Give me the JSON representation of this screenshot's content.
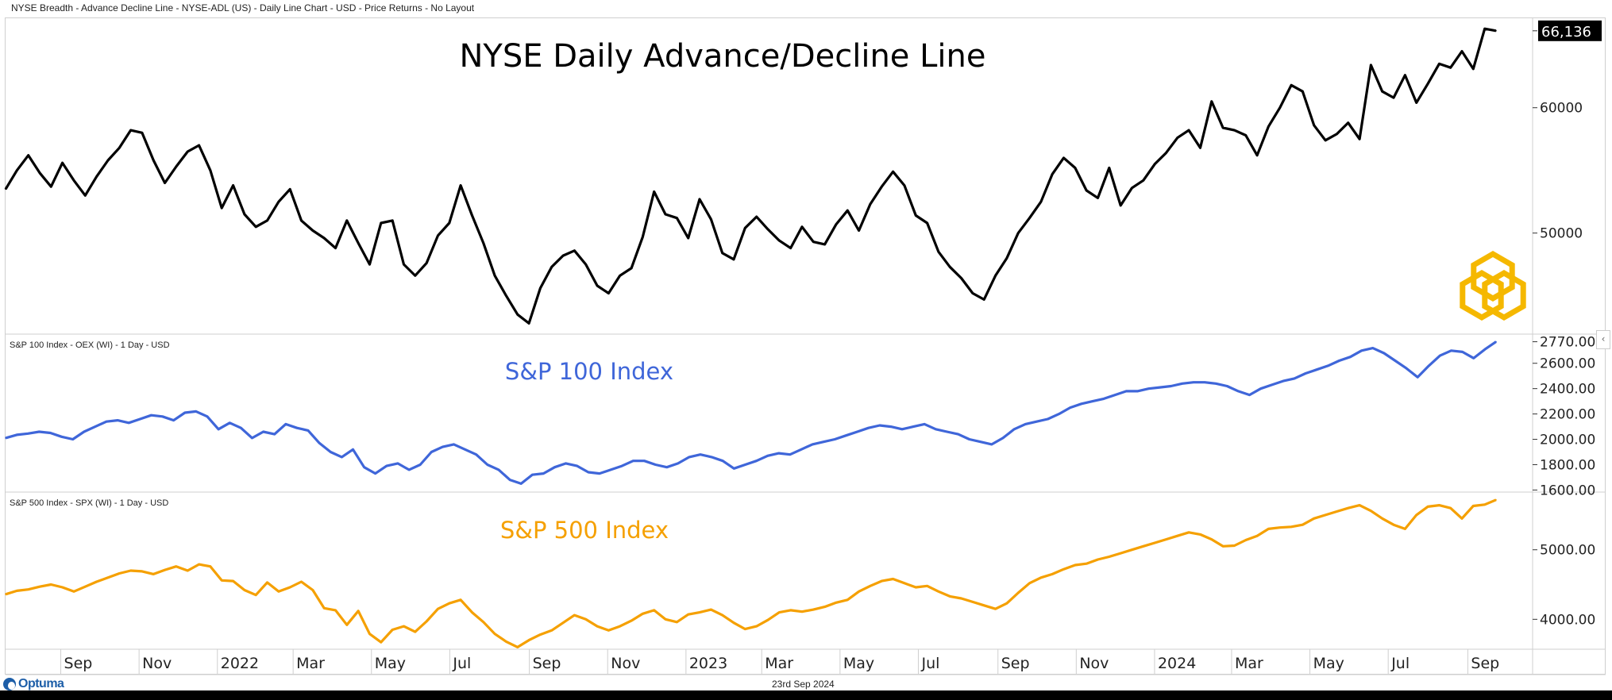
{
  "header": {
    "title": "NYSE Breadth - Advance Decline Line - NYSE-ADL (US) - Daily Line Chart - USD - Price Returns - No Layout"
  },
  "footer": {
    "date": "23rd Sep 2024",
    "brand": "Optuma"
  },
  "colors": {
    "adl": "#000000",
    "oex": "#3f66d9",
    "spx": "#f5a000",
    "watermark": "#f5b800",
    "last_value_bg": "#000000"
  },
  "chart_data": [
    {
      "type": "line",
      "panel": "top",
      "title": "NYSE Daily Advance/Decline Line",
      "series_label": "NYSE Breadth - Advance Decline Line - NYSE-ADL (US) - Daily Line Chart - USD - Price Returns - No Layout",
      "ylabel": "",
      "yticks": [
        50000,
        60000
      ],
      "ytick_labels": [
        "50000",
        "60000"
      ],
      "ylim": [
        42000,
        67200
      ],
      "last_value_label": "66,136",
      "last_value": 66136,
      "x_months": [
        "2021-07",
        "2024-09"
      ],
      "series": [
        {
          "name": "NYSE-ADL",
          "values": [
            53500,
            55000,
            56200,
            54800,
            53700,
            55600,
            54200,
            53000,
            54500,
            55800,
            56800,
            58200,
            58000,
            55800,
            54000,
            55300,
            56500,
            57000,
            55000,
            52000,
            53800,
            51500,
            50500,
            51000,
            52500,
            53500,
            51000,
            50200,
            49600,
            48800,
            51000,
            49200,
            47500,
            50800,
            51000,
            47500,
            46600,
            47600,
            49800,
            50800,
            53800,
            51400,
            49200,
            46600,
            45000,
            43500,
            42800,
            45600,
            47300,
            48200,
            48600,
            47500,
            45800,
            45200,
            46600,
            47200,
            49700,
            53300,
            51500,
            51200,
            49600,
            52700,
            51100,
            48400,
            47900,
            50400,
            51300,
            50300,
            49400,
            48800,
            50500,
            49300,
            49100,
            50700,
            51800,
            50200,
            52300,
            53700,
            54900,
            53800,
            51400,
            50800,
            48500,
            47300,
            46400,
            45200,
            44700,
            46600,
            48000,
            50000,
            51200,
            52500,
            54700,
            56000,
            55200,
            53400,
            52800,
            55200,
            52200,
            53600,
            54200,
            55500,
            56400,
            57600,
            58200,
            56800,
            60500,
            58400,
            58200,
            57800,
            56200,
            58500,
            60000,
            61800,
            61300,
            58600,
            57400,
            57900,
            58800,
            57500,
            63400,
            61300,
            60800,
            62600,
            60400,
            61900,
            63500,
            63200,
            64500,
            63100,
            66300,
            66136
          ]
        }
      ],
      "grid": false
    },
    {
      "type": "line",
      "panel": "middle",
      "title": "S&P 100 Index",
      "series_label": "S&P 100 Index - OEX (WI) - 1 Day - USD",
      "yticks": [
        1600,
        1800,
        2000,
        2200,
        2400,
        2600,
        2770
      ],
      "ytick_labels": [
        "1600.00",
        "1800.00",
        "2000.00",
        "2200.00",
        "2400.00",
        "2600.00",
        "2770.00"
      ],
      "ylim": [
        1590,
        2830
      ],
      "last_value": 2770,
      "series": [
        {
          "name": "OEX",
          "values": [
            2010,
            2035,
            2045,
            2060,
            2050,
            2020,
            2000,
            2060,
            2100,
            2140,
            2150,
            2130,
            2160,
            2190,
            2180,
            2150,
            2210,
            2220,
            2180,
            2080,
            2130,
            2090,
            2010,
            2060,
            2040,
            2120,
            2090,
            2070,
            1970,
            1900,
            1860,
            1920,
            1780,
            1730,
            1790,
            1810,
            1760,
            1800,
            1900,
            1940,
            1960,
            1920,
            1880,
            1800,
            1760,
            1680,
            1650,
            1720,
            1730,
            1780,
            1810,
            1790,
            1740,
            1730,
            1760,
            1790,
            1830,
            1830,
            1800,
            1780,
            1810,
            1860,
            1880,
            1860,
            1830,
            1770,
            1800,
            1830,
            1870,
            1890,
            1880,
            1920,
            1960,
            1980,
            2000,
            2030,
            2060,
            2090,
            2110,
            2100,
            2080,
            2100,
            2120,
            2080,
            2060,
            2040,
            2000,
            1980,
            1960,
            2010,
            2080,
            2120,
            2140,
            2160,
            2200,
            2250,
            2280,
            2300,
            2320,
            2350,
            2380,
            2380,
            2400,
            2410,
            2420,
            2440,
            2450,
            2450,
            2440,
            2420,
            2380,
            2350,
            2400,
            2430,
            2460,
            2480,
            2520,
            2550,
            2580,
            2620,
            2650,
            2700,
            2720,
            2680,
            2620,
            2560,
            2490,
            2580,
            2660,
            2700,
            2690,
            2640,
            2710,
            2770
          ]
        }
      ],
      "grid": false
    },
    {
      "type": "line",
      "panel": "bottom",
      "title": "S&P 500 Index",
      "series_label": "S&P 500 Index - SPX (WI) - 1 Day - USD",
      "yticks": [
        4000,
        5000
      ],
      "ytick_labels": [
        "4000.00",
        "5000.00"
      ],
      "ylim": [
        3570,
        5830
      ],
      "last_value": 5718,
      "series": [
        {
          "name": "SPX",
          "values": [
            4360,
            4410,
            4430,
            4470,
            4500,
            4460,
            4400,
            4470,
            4540,
            4600,
            4660,
            4700,
            4690,
            4650,
            4710,
            4760,
            4700,
            4790,
            4760,
            4560,
            4550,
            4420,
            4350,
            4530,
            4400,
            4460,
            4540,
            4420,
            4160,
            4130,
            3920,
            4120,
            3790,
            3670,
            3850,
            3900,
            3820,
            3970,
            4150,
            4230,
            4280,
            4100,
            3960,
            3790,
            3680,
            3600,
            3700,
            3780,
            3840,
            3950,
            4060,
            4000,
            3900,
            3840,
            3900,
            3980,
            4080,
            4130,
            4000,
            3960,
            4070,
            4100,
            4140,
            4060,
            3950,
            3860,
            3900,
            3990,
            4100,
            4130,
            4110,
            4140,
            4180,
            4240,
            4280,
            4400,
            4480,
            4550,
            4580,
            4520,
            4460,
            4480,
            4400,
            4330,
            4300,
            4250,
            4200,
            4150,
            4230,
            4380,
            4520,
            4600,
            4650,
            4720,
            4780,
            4800,
            4860,
            4900,
            4950,
            5000,
            5050,
            5100,
            5150,
            5200,
            5250,
            5220,
            5150,
            5050,
            5060,
            5140,
            5200,
            5300,
            5320,
            5330,
            5360,
            5450,
            5500,
            5550,
            5600,
            5640,
            5560,
            5450,
            5360,
            5300,
            5500,
            5620,
            5640,
            5600,
            5450,
            5630,
            5650,
            5718
          ]
        }
      ],
      "grid": false
    }
  ],
  "x_axis": {
    "labels": [
      "Sep",
      "Nov",
      "2022",
      "Mar",
      "May",
      "Jul",
      "Sep",
      "Nov",
      "2023",
      "Mar",
      "May",
      "Jul",
      "Sep",
      "Nov",
      "2024",
      "Mar",
      "May",
      "Jul",
      "Sep"
    ],
    "label_dates": [
      "2021-09",
      "2021-11",
      "2022-01",
      "2022-03",
      "2022-05",
      "2022-07",
      "2022-09",
      "2022-11",
      "2023-01",
      "2023-03",
      "2023-05",
      "2023-07",
      "2023-09",
      "2023-11",
      "2024-01",
      "2024-03",
      "2024-05",
      "2024-07",
      "2024-09"
    ],
    "range": [
      "2021-07-20",
      "2024-09-23"
    ]
  }
}
